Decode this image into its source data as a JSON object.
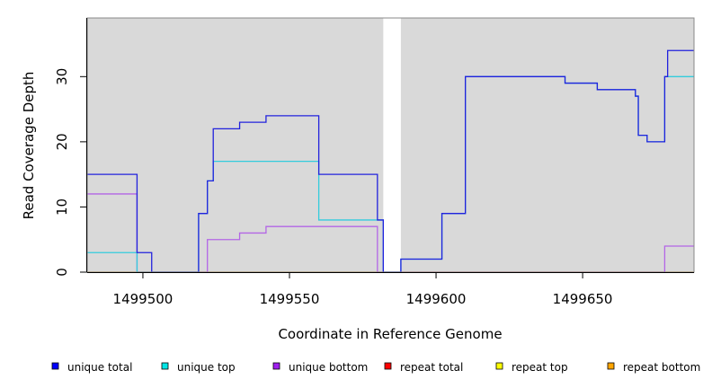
{
  "chart_data": {
    "type": "line",
    "xlabel": "Coordinate in Reference Genome",
    "ylabel": "Read Coverage Depth",
    "xlim": [
      1499481,
      1499688
    ],
    "ylim": [
      0,
      39
    ],
    "x_ticks": [
      1499500,
      1499550,
      1499600,
      1499650
    ],
    "y_ticks": [
      0,
      10,
      20,
      30
    ],
    "background": "#d9d9d9",
    "gap_region": [
      1499582,
      1499588
    ],
    "legend": {
      "placement": "bottom",
      "entries": [
        {
          "name": "unique total",
          "color": "#0000ff"
        },
        {
          "name": "unique top",
          "color": "#00e5e5"
        },
        {
          "name": "unique bottom",
          "color": "#a020f0"
        },
        {
          "name": "repeat total",
          "color": "#ff0000"
        },
        {
          "name": "repeat top",
          "color": "#ffff00"
        },
        {
          "name": "repeat bottom",
          "color": "#ffa500"
        }
      ]
    },
    "series": [
      {
        "name": "unique total",
        "color": "#2222dd",
        "x": [
          1499481,
          1499498,
          1499503,
          1499519,
          1499522,
          1499524,
          1499533,
          1499542,
          1499560,
          1499580,
          1499582,
          1499588,
          1499602,
          1499610,
          1499644,
          1499655,
          1499668,
          1499669,
          1499672,
          1499678,
          1499679,
          1499688
        ],
        "y": [
          15,
          3,
          0,
          9,
          14,
          22,
          23,
          24,
          15,
          8,
          0,
          2,
          9,
          30,
          29,
          28,
          27,
          21,
          20,
          30,
          34,
          34
        ]
      },
      {
        "name": "unique top",
        "color": "#33ccdd",
        "x": [
          1499481,
          1499498,
          1499503,
          1499519,
          1499522,
          1499524,
          1499560,
          1499582,
          1499588,
          1499602,
          1499610,
          1499644,
          1499655,
          1499668,
          1499669,
          1499672,
          1499678,
          1499688
        ],
        "y": [
          3,
          0,
          0,
          9,
          14,
          17,
          8,
          0,
          2,
          9,
          30,
          29,
          28,
          27,
          21,
          20,
          30,
          30
        ]
      },
      {
        "name": "unique bottom",
        "color": "#b366e6",
        "x": [
          1499481,
          1499498,
          1499522,
          1499533,
          1499542,
          1499580,
          1499678,
          1499688
        ],
        "y": [
          12,
          0,
          5,
          6,
          7,
          0,
          4,
          4
        ]
      },
      {
        "name": "repeat bottom",
        "color": "#ffa500",
        "x": [
          1499481,
          1499688
        ],
        "y": [
          0,
          0
        ]
      }
    ]
  }
}
